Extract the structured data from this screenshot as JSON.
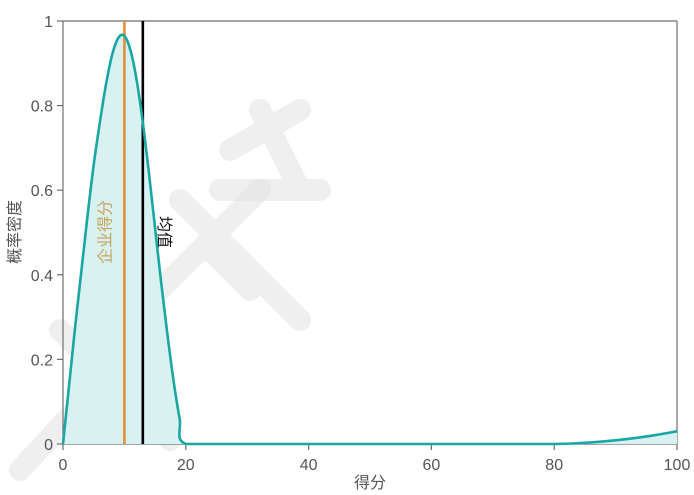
{
  "chart_data": {
    "type": "area",
    "title": "",
    "xlabel": "得分",
    "ylabel": "概率密度",
    "xlim": [
      0,
      100
    ],
    "ylim": [
      0,
      1
    ],
    "xticks": [
      0,
      20,
      40,
      60,
      80,
      100
    ],
    "yticks": [
      0,
      0.2,
      0.4,
      0.6,
      0.8,
      1
    ],
    "xtick_labels": [
      "0",
      "20",
      "40",
      "60",
      "80",
      "100"
    ],
    "ytick_labels": [
      "0",
      "0.2",
      "0.4",
      "0.6",
      "0.8",
      "1"
    ],
    "grid": false,
    "series": [
      {
        "x": [
          0,
          1,
          2,
          3,
          4,
          5,
          6,
          7,
          8,
          9,
          10,
          11,
          12,
          13,
          14,
          15,
          16,
          17,
          18,
          19,
          20,
          30,
          40,
          50,
          60,
          70,
          80,
          84,
          88,
          92,
          96,
          100
        ],
        "y": [
          0,
          0.14,
          0.28,
          0.41,
          0.54,
          0.66,
          0.76,
          0.85,
          0.92,
          0.96,
          0.965,
          0.93,
          0.86,
          0.76,
          0.64,
          0.51,
          0.38,
          0.26,
          0.15,
          0.06,
          0,
          0,
          0,
          0,
          0,
          0,
          0,
          0.002,
          0.006,
          0.012,
          0.02,
          0.03
        ],
        "color": "#1aa6a3",
        "fill": "#d8f1f1"
      }
    ],
    "reference_lines": [
      {
        "x": 10,
        "label": "企业得分",
        "color": "#e0913f",
        "label_color": "#c9a45c"
      },
      {
        "x": 13,
        "label": "均值",
        "color": "#000000",
        "label_color": "#111111"
      }
    ]
  }
}
